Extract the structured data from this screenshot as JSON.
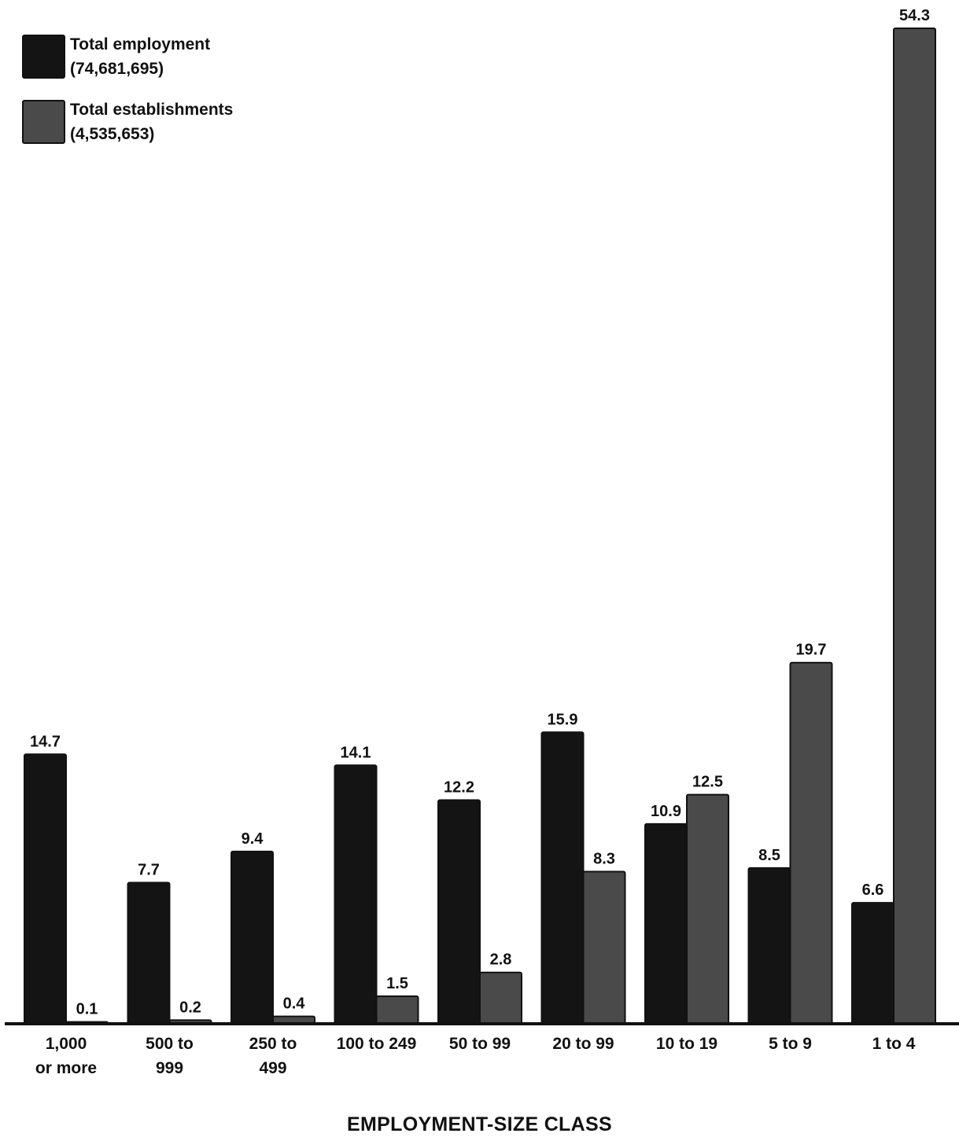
{
  "chart_data": {
    "type": "bar",
    "xlabel": "EMPLOYMENT-SIZE CLASS",
    "categories": [
      [
        "1,000",
        "or more"
      ],
      [
        "500 to",
        "999"
      ],
      [
        "250 to",
        "499"
      ],
      [
        "100 to 249"
      ],
      [
        "50 to 99"
      ],
      [
        "20 to 99"
      ],
      [
        "10 to 19"
      ],
      [
        "5 to 9"
      ],
      [
        "1 to 4"
      ]
    ],
    "series": [
      {
        "name": "Total employment",
        "total": "(74,681,695)",
        "color": "#141414",
        "values": [
          14.7,
          7.7,
          9.4,
          14.1,
          12.2,
          15.9,
          10.9,
          8.5,
          6.6
        ]
      },
      {
        "name": "Total establishments",
        "total": "(4,535,653)",
        "color": "#4a4a4a",
        "values": [
          0.1,
          0.2,
          0.4,
          1.5,
          2.8,
          8.3,
          12.5,
          19.7,
          54.3
        ]
      }
    ],
    "ylim": [
      0,
      54.3
    ],
    "grid": false,
    "legend_position": "top-left"
  }
}
